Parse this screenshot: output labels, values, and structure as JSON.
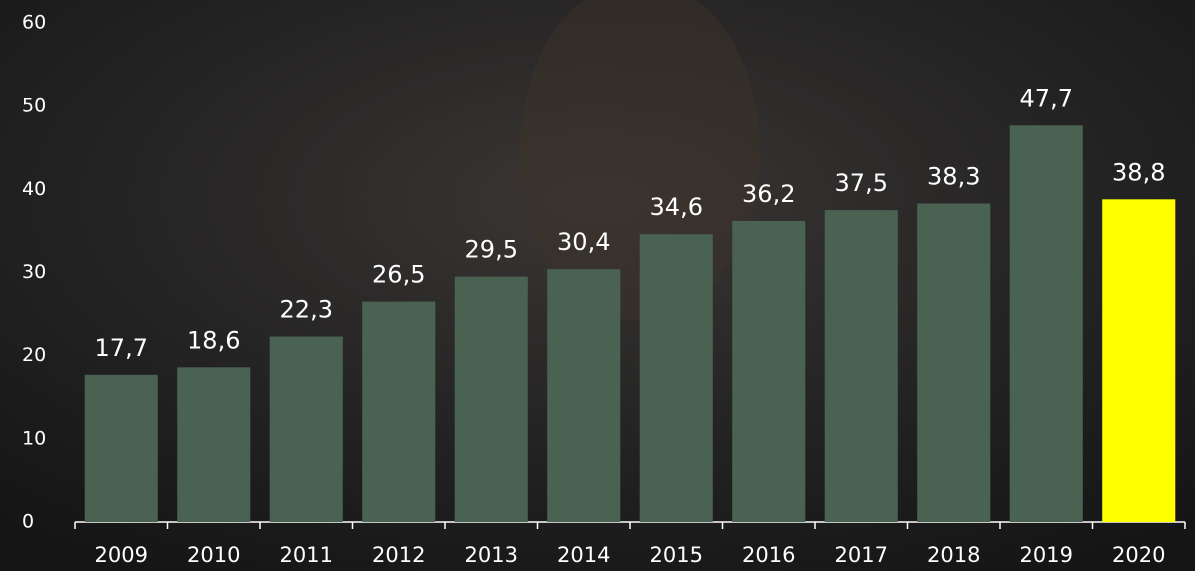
{
  "chart_data": {
    "type": "bar",
    "categories": [
      "2009",
      "2010",
      "2011",
      "2012",
      "2013",
      "2014",
      "2015",
      "2016",
      "2017",
      "2018",
      "2019",
      "2020"
    ],
    "values": [
      17.7,
      18.6,
      22.3,
      26.5,
      29.5,
      30.4,
      34.6,
      36.2,
      37.5,
      38.3,
      47.7,
      38.8
    ],
    "value_labels": [
      "17,7",
      "18,6",
      "22,3",
      "26,5",
      "29,5",
      "30,4",
      "34,6",
      "36,2",
      "37,5",
      "38,3",
      "47,7",
      "38,8"
    ],
    "colors": [
      "#4a6252",
      "#4a6252",
      "#4a6252",
      "#4a6252",
      "#4a6252",
      "#4a6252",
      "#4a6252",
      "#4a6252",
      "#4a6252",
      "#4a6252",
      "#4a6252",
      "#ffff00"
    ],
    "ylim": [
      0,
      60
    ],
    "yticks": [
      0,
      10,
      20,
      30,
      40,
      50,
      60
    ],
    "grid": false
  }
}
